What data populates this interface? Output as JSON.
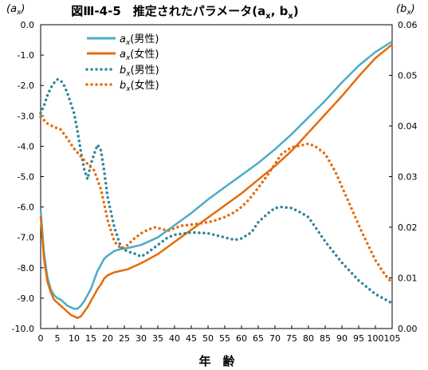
{
  "chart_data": {
    "type": "line",
    "title": "図Ⅲ-4-5　推定されたパラメータ(a",
    "title_sub_x": "x",
    "title_sep": ", b",
    "title_sub_x2": "x",
    "title_close": ")",
    "xlabel": "年　齢",
    "ylabel_left": {
      "open": "(a",
      "sub": "x",
      "close": ")"
    },
    "ylabel_right": {
      "open": "(b",
      "sub": "x",
      "close": ")"
    },
    "xlim": [
      0,
      105
    ],
    "ylim_left": [
      -10.0,
      0.0
    ],
    "ylim_right": [
      0.0,
      0.06
    ],
    "x_ticks": [
      "0",
      "5",
      "10",
      "15",
      "20",
      "25",
      "30",
      "35",
      "40",
      "45",
      "50",
      "55",
      "60",
      "65",
      "70",
      "75",
      "80",
      "85",
      "90",
      "95",
      "100",
      "105"
    ],
    "y_left_ticks": [
      "0.0",
      "-1.0",
      "-2.0",
      "-3.0",
      "-4.0",
      "-5.0",
      "-6.0",
      "-7.0",
      "-8.0",
      "-9.0",
      "-10.0"
    ],
    "y_right_ticks": [
      "0.06",
      "0.05",
      "0.04",
      "0.03",
      "0.02",
      "0.01",
      "0.00"
    ],
    "grid": false,
    "legend_position": "top-left",
    "series": [
      {
        "name": "ax(男性)",
        "legend_main": "a",
        "legend_sub": "x",
        "legend_suffix": "(男性)",
        "axis": "left",
        "style": "solid",
        "color": "#4BACC6",
        "x": [
          0,
          1,
          2,
          3,
          4,
          5,
          6,
          7,
          8,
          9,
          10,
          11,
          12,
          13,
          14,
          15,
          16,
          17,
          18,
          19,
          20,
          22,
          24,
          26,
          28,
          30,
          35,
          40,
          45,
          50,
          55,
          60,
          65,
          70,
          75,
          80,
          85,
          90,
          95,
          100,
          105
        ],
        "y": [
          -6.1,
          -7.5,
          -8.3,
          -8.7,
          -8.9,
          -9.0,
          -9.05,
          -9.15,
          -9.25,
          -9.3,
          -9.35,
          -9.35,
          -9.25,
          -9.1,
          -8.9,
          -8.7,
          -8.4,
          -8.1,
          -7.9,
          -7.7,
          -7.6,
          -7.45,
          -7.38,
          -7.35,
          -7.3,
          -7.25,
          -7.0,
          -6.6,
          -6.2,
          -5.75,
          -5.35,
          -4.95,
          -4.55,
          -4.1,
          -3.6,
          -3.05,
          -2.5,
          -1.9,
          -1.35,
          -0.9,
          -0.55
        ]
      },
      {
        "name": "ax(女性)",
        "legend_main": "a",
        "legend_sub": "x",
        "legend_suffix": "(女性)",
        "axis": "left",
        "style": "solid",
        "color": "#E46C0A",
        "x": [
          0,
          1,
          2,
          3,
          4,
          5,
          6,
          7,
          8,
          9,
          10,
          11,
          12,
          13,
          14,
          15,
          16,
          17,
          18,
          19,
          20,
          22,
          24,
          26,
          28,
          30,
          35,
          40,
          45,
          50,
          55,
          60,
          65,
          70,
          75,
          80,
          85,
          90,
          95,
          100,
          105
        ],
        "y": [
          -6.3,
          -7.7,
          -8.45,
          -8.8,
          -9.05,
          -9.15,
          -9.25,
          -9.35,
          -9.45,
          -9.55,
          -9.6,
          -9.65,
          -9.6,
          -9.45,
          -9.3,
          -9.1,
          -8.9,
          -8.7,
          -8.55,
          -8.35,
          -8.25,
          -8.15,
          -8.1,
          -8.05,
          -7.95,
          -7.85,
          -7.55,
          -7.15,
          -6.75,
          -6.35,
          -5.95,
          -5.55,
          -5.1,
          -4.65,
          -4.15,
          -3.55,
          -2.95,
          -2.35,
          -1.7,
          -1.1,
          -0.65
        ]
      },
      {
        "name": "bx(男性)",
        "legend_main": "b",
        "legend_sub": "x",
        "legend_suffix": "(男性)",
        "axis": "right",
        "style": "dotted",
        "color": "#31859C",
        "x": [
          0,
          1,
          2,
          3,
          4,
          5,
          6,
          7,
          8,
          9,
          10,
          11,
          12,
          13,
          14,
          15,
          16,
          17,
          18,
          19,
          20,
          22,
          24,
          26,
          28,
          30,
          32,
          34,
          36,
          38,
          40,
          45,
          50,
          55,
          58,
          60,
          63,
          65,
          68,
          70,
          72,
          75,
          78,
          80,
          85,
          90,
          95,
          100,
          105
        ],
        "y": [
          0.0425,
          0.044,
          0.046,
          0.0475,
          0.0485,
          0.0492,
          0.049,
          0.048,
          0.0465,
          0.0445,
          0.0425,
          0.039,
          0.035,
          0.0315,
          0.0295,
          0.0325,
          0.0345,
          0.0363,
          0.0352,
          0.031,
          0.026,
          0.02,
          0.016,
          0.0152,
          0.0148,
          0.0142,
          0.015,
          0.016,
          0.017,
          0.018,
          0.0185,
          0.019,
          0.0188,
          0.018,
          0.0175,
          0.0178,
          0.019,
          0.021,
          0.0228,
          0.0238,
          0.024,
          0.0238,
          0.0228,
          0.022,
          0.0172,
          0.013,
          0.0095,
          0.0068,
          0.005
        ]
      },
      {
        "name": "bx(女性)",
        "legend_main": "b",
        "legend_sub": "x",
        "legend_suffix": "(女性)",
        "axis": "right",
        "style": "dotted",
        "color": "#E46C0A",
        "x": [
          0,
          2,
          4,
          6,
          8,
          10,
          12,
          14,
          16,
          18,
          20,
          22,
          24,
          26,
          28,
          30,
          32,
          34,
          36,
          38,
          40,
          42,
          45,
          48,
          50,
          52,
          55,
          58,
          60,
          62,
          65,
          68,
          70,
          72,
          75,
          78,
          80,
          82,
          85,
          88,
          90,
          93,
          96,
          100,
          103,
          105
        ],
        "y": [
          0.0418,
          0.0405,
          0.0398,
          0.0393,
          0.0375,
          0.0355,
          0.034,
          0.0325,
          0.0312,
          0.0275,
          0.0215,
          0.0172,
          0.0158,
          0.0165,
          0.0178,
          0.0188,
          0.0195,
          0.02,
          0.0197,
          0.0193,
          0.0198,
          0.0203,
          0.0205,
          0.0208,
          0.021,
          0.0213,
          0.022,
          0.023,
          0.024,
          0.0253,
          0.0278,
          0.0305,
          0.0325,
          0.0345,
          0.0358,
          0.0362,
          0.0365,
          0.036,
          0.0345,
          0.031,
          0.028,
          0.0235,
          0.019,
          0.0135,
          0.0105,
          0.009
        ]
      }
    ]
  }
}
